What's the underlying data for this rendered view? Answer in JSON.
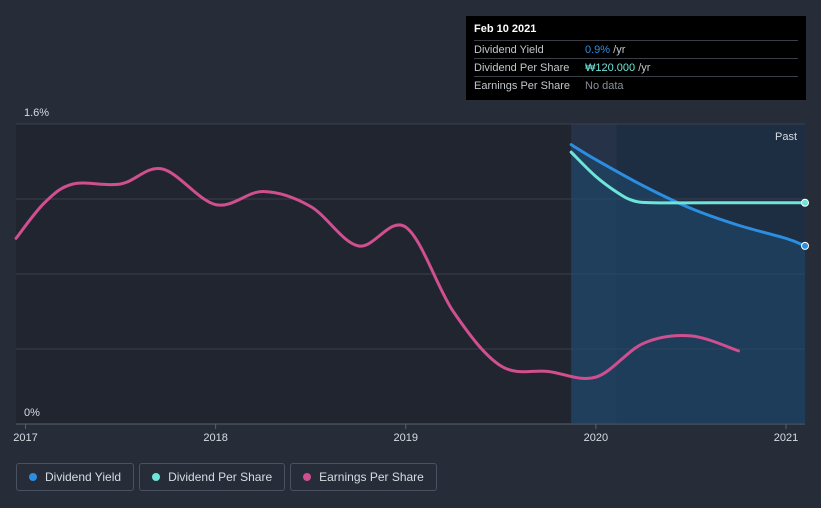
{
  "chart_data": {
    "type": "line",
    "ylim": [
      0,
      1.6
    ],
    "xlim": [
      2016.95,
      2021.1
    ],
    "y_tick_labels": [
      "1.6%",
      "0%"
    ],
    "y_tick_values": [
      1.6,
      0
    ],
    "x_tick_labels": [
      "2017",
      "2018",
      "2019",
      "2020",
      "2021"
    ],
    "x_tick_values": [
      2017,
      2018,
      2019,
      2020,
      2021
    ],
    "past_label": "Past",
    "forecast_start": 2019.87,
    "highlight_start": 2020.11,
    "series": [
      {
        "name": "Dividend Yield",
        "color": "#2b8ee0",
        "points": [
          [
            2019.87,
            1.49
          ],
          [
            2020.0,
            1.41
          ],
          [
            2020.25,
            1.27
          ],
          [
            2020.5,
            1.15
          ],
          [
            2020.75,
            1.06
          ],
          [
            2021.0,
            0.99
          ],
          [
            2021.1,
            0.95
          ]
        ],
        "end_marker": true
      },
      {
        "name": "Dividend Per Share",
        "color": "#6ee5d9",
        "points": [
          [
            2019.87,
            1.45
          ],
          [
            2020.0,
            1.32
          ],
          [
            2020.12,
            1.23
          ],
          [
            2020.2,
            1.19
          ],
          [
            2020.3,
            1.18
          ],
          [
            2020.6,
            1.18
          ],
          [
            2021.1,
            1.18
          ]
        ],
        "end_marker": true
      },
      {
        "name": "Earnings Per Share",
        "color": "#d04f8f",
        "points": [
          [
            2016.95,
            0.99
          ],
          [
            2017.1,
            1.18
          ],
          [
            2017.25,
            1.28
          ],
          [
            2017.5,
            1.28
          ],
          [
            2017.72,
            1.36
          ],
          [
            2018.0,
            1.17
          ],
          [
            2018.25,
            1.24
          ],
          [
            2018.5,
            1.16
          ],
          [
            2018.75,
            0.95
          ],
          [
            2019.0,
            1.05
          ],
          [
            2019.25,
            0.6
          ],
          [
            2019.5,
            0.31
          ],
          [
            2019.75,
            0.28
          ],
          [
            2020.0,
            0.25
          ],
          [
            2020.25,
            0.43
          ],
          [
            2020.5,
            0.47
          ],
          [
            2020.75,
            0.39
          ]
        ],
        "end_marker": false
      }
    ]
  },
  "tooltip": {
    "date": "Feb 10 2021",
    "rows": [
      {
        "label": "Dividend Yield",
        "value": "0.9%",
        "unit": " /yr",
        "color": "#2b8ee0"
      },
      {
        "label": "Dividend Per Share",
        "value": "₩120.000",
        "unit": " /yr",
        "color": "#6ee5d9"
      },
      {
        "label": "Earnings Per Share",
        "value": "No data",
        "unit": "",
        "color": "#8a8f97"
      }
    ]
  },
  "legend": [
    {
      "label": "Dividend Yield",
      "color": "#2b8ee0"
    },
    {
      "label": "Dividend Per Share",
      "color": "#6ee5d9"
    },
    {
      "label": "Earnings Per Share",
      "color": "#d04f8f"
    }
  ]
}
